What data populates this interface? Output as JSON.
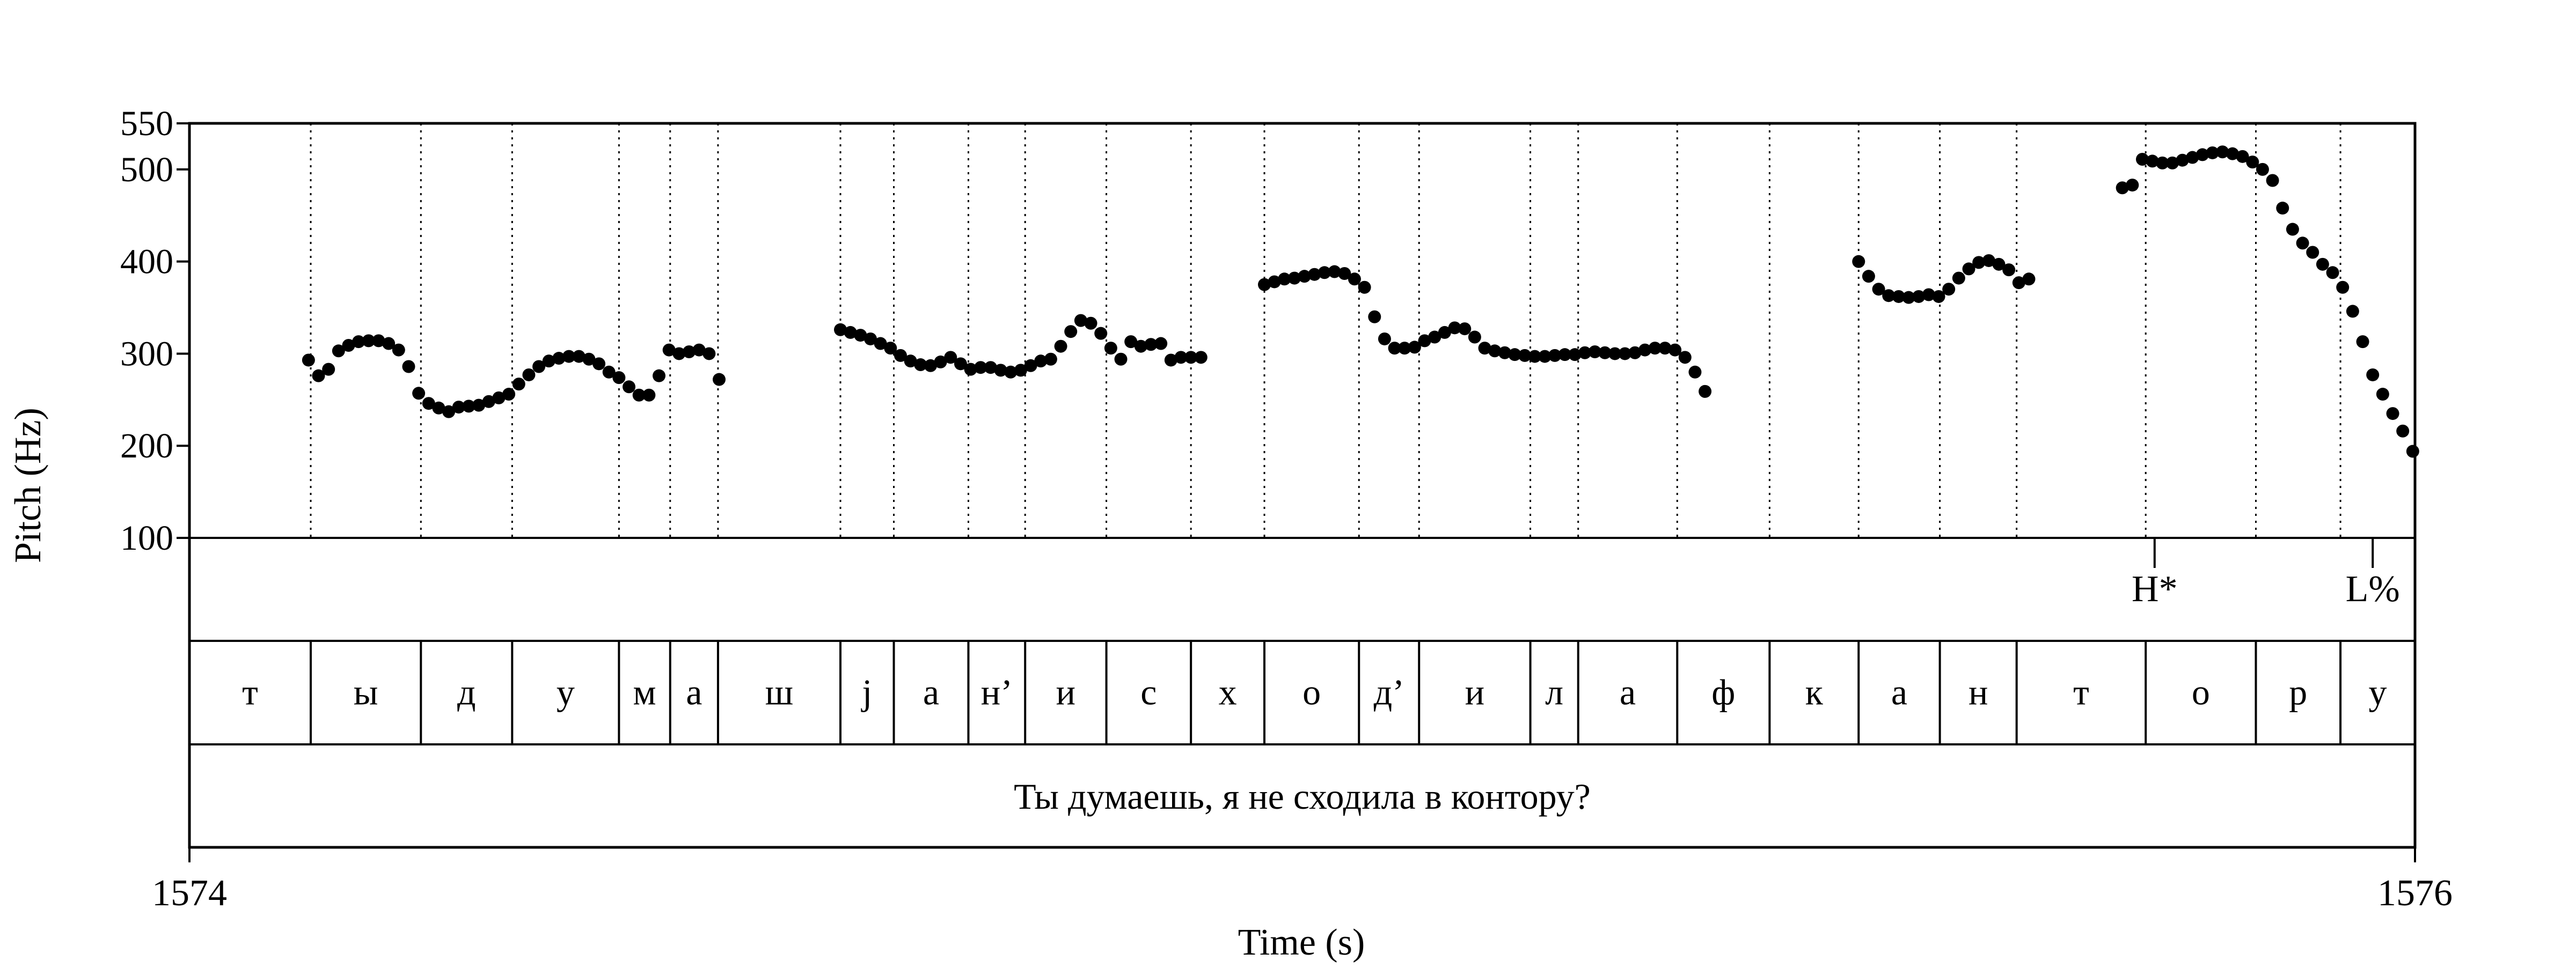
{
  "chart_data": {
    "type": "scatter",
    "xlabel": "Time (s)",
    "ylabel": "Pitch (Hz)",
    "xlim": [
      1574,
      1576
    ],
    "ylim": [
      100,
      550
    ],
    "x_ticks": [
      "1574",
      "1576"
    ],
    "y_ticks": [
      100,
      200,
      300,
      400,
      500,
      550
    ],
    "tone_tier": [
      {
        "label": "H*",
        "time": 1575.766
      },
      {
        "label": "L%",
        "time": 1575.962
      }
    ],
    "segments": [
      {
        "label": "т",
        "start": 1574.0,
        "end": 1574.109
      },
      {
        "label": "ы",
        "start": 1574.109,
        "end": 1574.208
      },
      {
        "label": "д",
        "start": 1574.208,
        "end": 1574.29
      },
      {
        "label": "у",
        "start": 1574.29,
        "end": 1574.386
      },
      {
        "label": "м",
        "start": 1574.386,
        "end": 1574.432
      },
      {
        "label": "а",
        "start": 1574.432,
        "end": 1574.475
      },
      {
        "label": "ш",
        "start": 1574.475,
        "end": 1574.585
      },
      {
        "label": "j",
        "start": 1574.585,
        "end": 1574.633
      },
      {
        "label": "а",
        "start": 1574.633,
        "end": 1574.7
      },
      {
        "label": "н’",
        "start": 1574.7,
        "end": 1574.751
      },
      {
        "label": "и",
        "start": 1574.751,
        "end": 1574.824
      },
      {
        "label": "с",
        "start": 1574.824,
        "end": 1574.9
      },
      {
        "label": "х",
        "start": 1574.9,
        "end": 1574.966
      },
      {
        "label": "о",
        "start": 1574.966,
        "end": 1575.051
      },
      {
        "label": "д’",
        "start": 1575.051,
        "end": 1575.105
      },
      {
        "label": "и",
        "start": 1575.105,
        "end": 1575.205
      },
      {
        "label": "л",
        "start": 1575.205,
        "end": 1575.248
      },
      {
        "label": "а",
        "start": 1575.248,
        "end": 1575.337
      },
      {
        "label": "ф",
        "start": 1575.337,
        "end": 1575.42
      },
      {
        "label": "к",
        "start": 1575.42,
        "end": 1575.5
      },
      {
        "label": "а",
        "start": 1575.5,
        "end": 1575.573
      },
      {
        "label": "н",
        "start": 1575.573,
        "end": 1575.642
      },
      {
        "label": "т",
        "start": 1575.642,
        "end": 1575.758
      },
      {
        "label": "о",
        "start": 1575.758,
        "end": 1575.857
      },
      {
        "label": "р",
        "start": 1575.857,
        "end": 1575.933
      },
      {
        "label": "у",
        "start": 1575.933,
        "end": 1576.0
      }
    ],
    "sentence": "Ты думаешь, я не сходила в контору?",
    "points": [
      [
        1574.107,
        293
      ],
      [
        1574.116,
        276
      ],
      [
        1574.125,
        283
      ],
      [
        1574.134,
        303
      ],
      [
        1574.143,
        309
      ],
      [
        1574.152,
        313
      ],
      [
        1574.161,
        314
      ],
      [
        1574.17,
        314
      ],
      [
        1574.179,
        311
      ],
      [
        1574.188,
        304
      ],
      [
        1574.197,
        286
      ],
      [
        1574.206,
        257
      ],
      [
        1574.215,
        246
      ],
      [
        1574.224,
        241
      ],
      [
        1574.233,
        237
      ],
      [
        1574.242,
        242
      ],
      [
        1574.251,
        243
      ],
      [
        1574.26,
        244
      ],
      [
        1574.269,
        248
      ],
      [
        1574.278,
        252
      ],
      [
        1574.287,
        256
      ],
      [
        1574.296,
        267
      ],
      [
        1574.305,
        277
      ],
      [
        1574.314,
        286
      ],
      [
        1574.323,
        292
      ],
      [
        1574.332,
        295
      ],
      [
        1574.341,
        297
      ],
      [
        1574.35,
        297
      ],
      [
        1574.359,
        294
      ],
      [
        1574.368,
        289
      ],
      [
        1574.377,
        280
      ],
      [
        1574.386,
        274
      ],
      [
        1574.395,
        264
      ],
      [
        1574.404,
        255
      ],
      [
        1574.413,
        255
      ],
      [
        1574.422,
        276
      ],
      [
        1574.431,
        304
      ],
      [
        1574.44,
        300
      ],
      [
        1574.449,
        302
      ],
      [
        1574.458,
        304
      ],
      [
        1574.467,
        300
      ],
      [
        1574.476,
        272
      ],
      [
        1574.585,
        326
      ],
      [
        1574.594,
        323
      ],
      [
        1574.603,
        320
      ],
      [
        1574.612,
        316
      ],
      [
        1574.621,
        311
      ],
      [
        1574.63,
        306
      ],
      [
        1574.639,
        298
      ],
      [
        1574.648,
        292
      ],
      [
        1574.657,
        288
      ],
      [
        1574.666,
        287
      ],
      [
        1574.675,
        291
      ],
      [
        1574.684,
        296
      ],
      [
        1574.693,
        289
      ],
      [
        1574.702,
        283
      ],
      [
        1574.711,
        285
      ],
      [
        1574.72,
        285
      ],
      [
        1574.729,
        282
      ],
      [
        1574.738,
        280
      ],
      [
        1574.747,
        282
      ],
      [
        1574.756,
        287
      ],
      [
        1574.765,
        292
      ],
      [
        1574.774,
        294
      ],
      [
        1574.783,
        308
      ],
      [
        1574.792,
        324
      ],
      [
        1574.801,
        336
      ],
      [
        1574.81,
        333
      ],
      [
        1574.819,
        322
      ],
      [
        1574.828,
        306
      ],
      [
        1574.837,
        294
      ],
      [
        1574.846,
        313
      ],
      [
        1574.855,
        308
      ],
      [
        1574.864,
        310
      ],
      [
        1574.873,
        311
      ],
      [
        1574.882,
        293
      ],
      [
        1574.891,
        296
      ],
      [
        1574.9,
        296
      ],
      [
        1574.909,
        296
      ],
      [
        1574.966,
        375
      ],
      [
        1574.975,
        378
      ],
      [
        1574.984,
        381
      ],
      [
        1574.993,
        382
      ],
      [
        1575.002,
        384
      ],
      [
        1575.011,
        386
      ],
      [
        1575.02,
        388
      ],
      [
        1575.029,
        389
      ],
      [
        1575.038,
        387
      ],
      [
        1575.047,
        381
      ],
      [
        1575.056,
        372
      ],
      [
        1575.065,
        340
      ],
      [
        1575.074,
        316
      ],
      [
        1575.083,
        306
      ],
      [
        1575.092,
        306
      ],
      [
        1575.101,
        307
      ],
      [
        1575.11,
        314
      ],
      [
        1575.119,
        318
      ],
      [
        1575.128,
        323
      ],
      [
        1575.137,
        328
      ],
      [
        1575.146,
        327
      ],
      [
        1575.155,
        318
      ],
      [
        1575.164,
        306
      ],
      [
        1575.173,
        303
      ],
      [
        1575.182,
        301
      ],
      [
        1575.191,
        299
      ],
      [
        1575.2,
        298
      ],
      [
        1575.209,
        297
      ],
      [
        1575.218,
        297
      ],
      [
        1575.227,
        298
      ],
      [
        1575.236,
        299
      ],
      [
        1575.245,
        299
      ],
      [
        1575.254,
        301
      ],
      [
        1575.263,
        302
      ],
      [
        1575.272,
        301
      ],
      [
        1575.281,
        300
      ],
      [
        1575.29,
        300
      ],
      [
        1575.299,
        301
      ],
      [
        1575.308,
        304
      ],
      [
        1575.317,
        306
      ],
      [
        1575.326,
        306
      ],
      [
        1575.335,
        304
      ],
      [
        1575.344,
        296
      ],
      [
        1575.353,
        280
      ],
      [
        1575.362,
        259
      ],
      [
        1575.5,
        400
      ],
      [
        1575.509,
        384
      ],
      [
        1575.518,
        370
      ],
      [
        1575.527,
        363
      ],
      [
        1575.536,
        362
      ],
      [
        1575.545,
        361
      ],
      [
        1575.554,
        362
      ],
      [
        1575.563,
        364
      ],
      [
        1575.572,
        362
      ],
      [
        1575.581,
        370
      ],
      [
        1575.59,
        382
      ],
      [
        1575.599,
        392
      ],
      [
        1575.608,
        399
      ],
      [
        1575.617,
        401
      ],
      [
        1575.626,
        397
      ],
      [
        1575.635,
        391
      ],
      [
        1575.644,
        377
      ],
      [
        1575.653,
        381
      ],
      [
        1575.737,
        480
      ],
      [
        1575.746,
        483
      ],
      [
        1575.755,
        511
      ],
      [
        1575.764,
        509
      ],
      [
        1575.773,
        507
      ],
      [
        1575.782,
        507
      ],
      [
        1575.791,
        510
      ],
      [
        1575.8,
        513
      ],
      [
        1575.809,
        516
      ],
      [
        1575.818,
        518
      ],
      [
        1575.827,
        519
      ],
      [
        1575.836,
        517
      ],
      [
        1575.845,
        514
      ],
      [
        1575.854,
        508
      ],
      [
        1575.863,
        500
      ],
      [
        1575.872,
        488
      ],
      [
        1575.881,
        458
      ],
      [
        1575.89,
        435
      ],
      [
        1575.899,
        420
      ],
      [
        1575.908,
        410
      ],
      [
        1575.917,
        397
      ],
      [
        1575.926,
        388
      ],
      [
        1575.935,
        372
      ],
      [
        1575.944,
        346
      ],
      [
        1575.953,
        313
      ],
      [
        1575.962,
        277
      ],
      [
        1575.971,
        256
      ],
      [
        1575.98,
        235
      ],
      [
        1575.989,
        216
      ],
      [
        1575.998,
        194
      ]
    ]
  }
}
